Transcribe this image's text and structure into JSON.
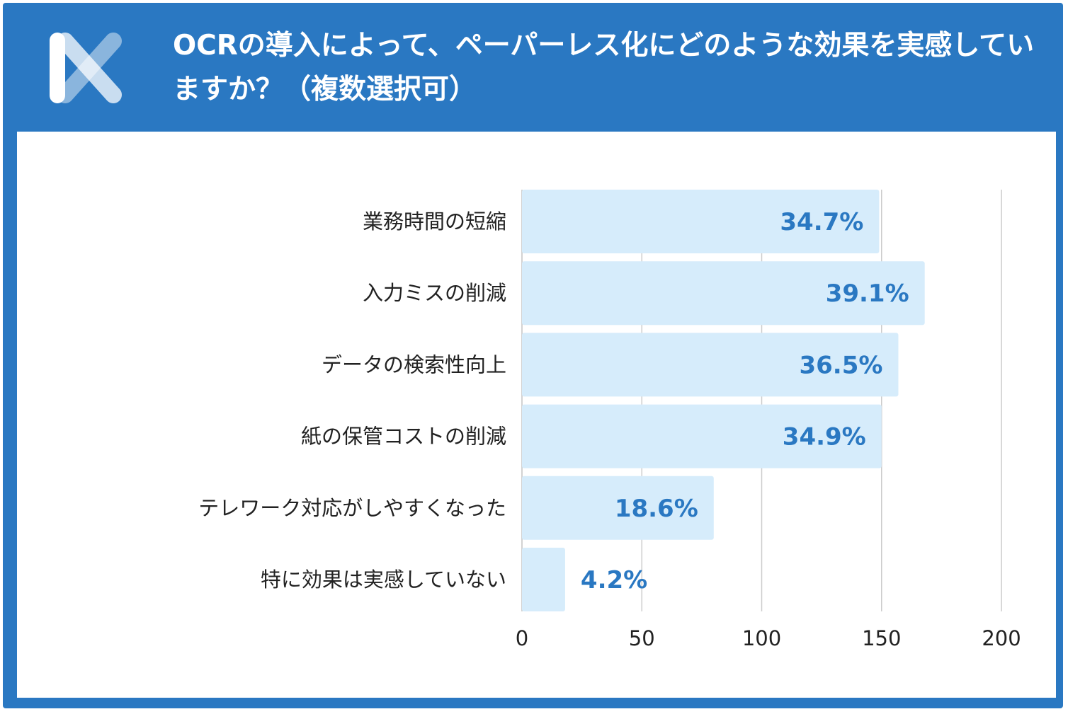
{
  "title": "OCRの導入によって、ペーパーレス化にどのような効果を実感していますか？（複数選択可）",
  "colors": {
    "header": "#2a78c2",
    "bar": "#d6ecfb",
    "value_text": "#2a78c2",
    "grid": "#cccccc"
  },
  "logo": {
    "icon": "x-logo-icon"
  },
  "chart_data": {
    "type": "bar",
    "orientation": "horizontal",
    "categories": [
      "業務時間の短縮",
      "入力ミスの削減",
      "データの検索性向上",
      "紙の保管コストの削減",
      "テレワーク対応がしやすくなった",
      "特に効果は実感していない"
    ],
    "values": [
      149,
      168,
      157,
      150,
      80,
      18
    ],
    "value_labels": [
      "34.7%",
      "39.1%",
      "36.5%",
      "34.9%",
      "18.6%",
      "4.2%"
    ],
    "xlim": [
      0,
      200
    ],
    "xticks": [
      "0",
      "50",
      "100",
      "150",
      "200"
    ],
    "xtick_values": [
      0,
      50,
      100,
      150,
      200
    ],
    "grid": true
  }
}
